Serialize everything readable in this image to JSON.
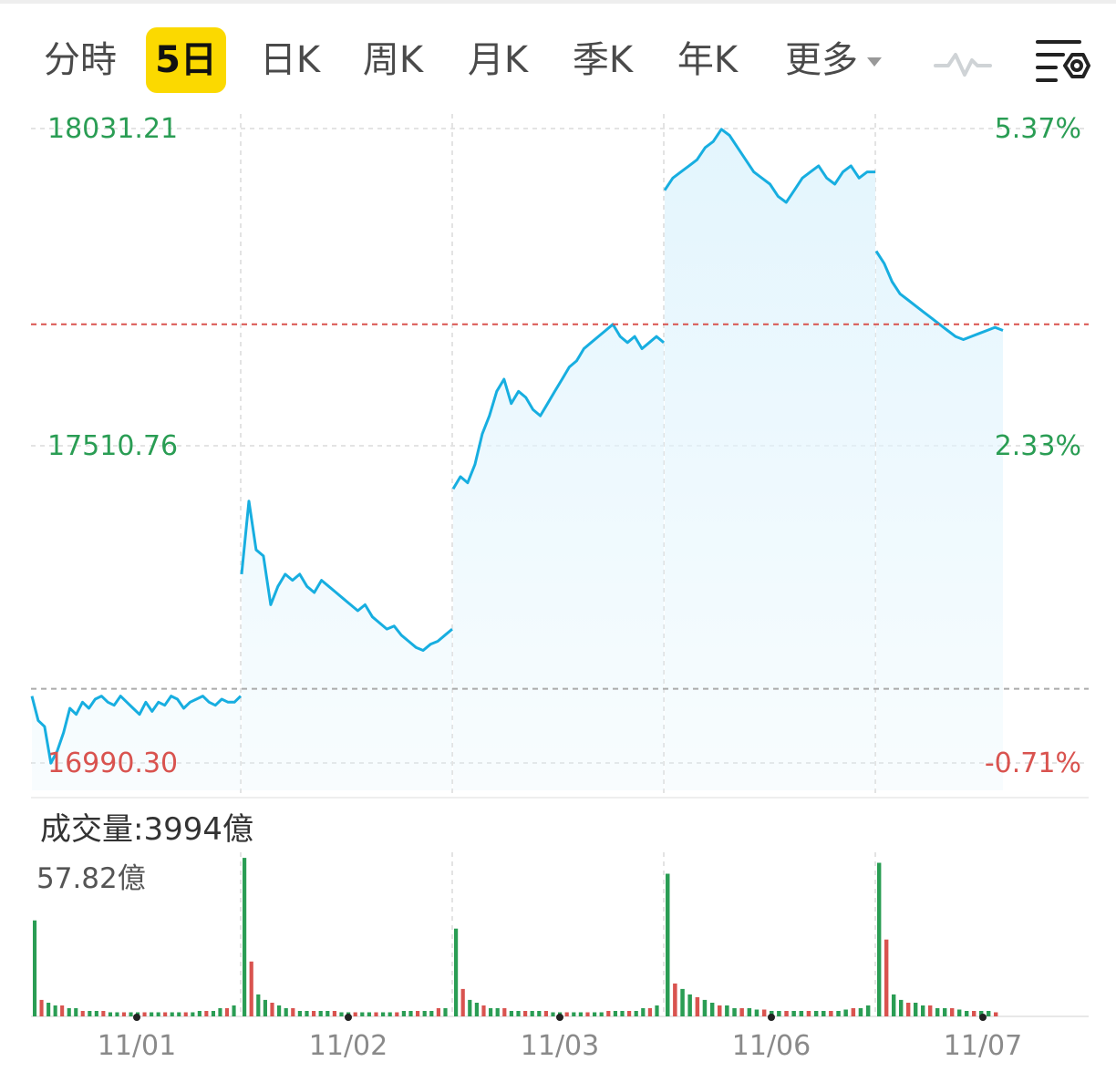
{
  "tabs": [
    {
      "label": "分時",
      "active": false
    },
    {
      "label": "5日",
      "active": true
    },
    {
      "label": "日K",
      "active": false
    },
    {
      "label": "周K",
      "active": false
    },
    {
      "label": "月K",
      "active": false
    },
    {
      "label": "季K",
      "active": false
    },
    {
      "label": "年K",
      "active": false
    },
    {
      "label": "更多",
      "active": false
    }
  ],
  "icons": {
    "indicator": "line-wave-icon",
    "settings": "chart-settings-icon"
  },
  "volume": {
    "title_label": "成交量:",
    "total": "3994億",
    "max_label": "57.82億"
  },
  "colors": {
    "line": "#17aee0",
    "fill": "#e3f5fd",
    "up": "#2a9d54",
    "down": "#d9534f",
    "tab_active": "#fbd900",
    "ref_red": "#d9534f",
    "ref_gray": "#aaaaaa"
  },
  "chart_data": [
    {
      "type": "line",
      "title": "",
      "x_labels": [
        "11/01",
        "11/02",
        "11/03",
        "11/06",
        "11/07"
      ],
      "price_axis_labels": [
        "18031.21",
        "17510.76",
        "16990.30"
      ],
      "pct_axis_labels": [
        "5.37%",
        "2.33%",
        "-0.71%"
      ],
      "ylim": [
        16990.3,
        18031.21
      ],
      "prev_close": 17112.0,
      "ref_level": 17710.0,
      "days": [
        {
          "date": "11/01",
          "values": [
            17100,
            17060,
            17050,
            16990,
            17010,
            17040,
            17080,
            17070,
            17090,
            17080,
            17095,
            17100,
            17090,
            17085,
            17100,
            17090,
            17080,
            17070,
            17090,
            17075,
            17090,
            17085,
            17100,
            17095,
            17080,
            17090,
            17095,
            17100,
            17090,
            17085,
            17095,
            17090,
            17090,
            17100
          ]
        },
        {
          "date": "11/02",
          "values": [
            17300,
            17420,
            17340,
            17330,
            17250,
            17280,
            17300,
            17290,
            17300,
            17280,
            17270,
            17290,
            17280,
            17270,
            17260,
            17250,
            17240,
            17250,
            17230,
            17220,
            17210,
            17215,
            17200,
            17190,
            17180,
            17175,
            17185,
            17190,
            17200,
            17210
          ]
        },
        {
          "date": "11/03",
          "values": [
            17440,
            17460,
            17450,
            17480,
            17530,
            17560,
            17600,
            17620,
            17580,
            17600,
            17590,
            17570,
            17560,
            17580,
            17600,
            17620,
            17640,
            17650,
            17670,
            17680,
            17690,
            17700,
            17710,
            17690,
            17680,
            17690,
            17670,
            17680,
            17690,
            17680
          ]
        },
        {
          "date": "11/06",
          "values": [
            17930,
            17950,
            17960,
            17970,
            17980,
            18000,
            18010,
            18030,
            18020,
            18000,
            17980,
            17960,
            17950,
            17940,
            17920,
            17910,
            17930,
            17950,
            17960,
            17970,
            17950,
            17940,
            17960,
            17970,
            17950,
            17960,
            17960
          ]
        },
        {
          "date": "11/07",
          "values": [
            17830,
            17810,
            17780,
            17760,
            17750,
            17740,
            17730,
            17720,
            17710,
            17700,
            17690,
            17685,
            17690,
            17695,
            17700,
            17705,
            17700
          ]
        }
      ]
    },
    {
      "type": "bar",
      "title": "成交量",
      "ylim": [
        0,
        57.82
      ],
      "y_unit": "億",
      "days": [
        {
          "date": "11/01",
          "values": [
            35,
            6,
            5,
            4,
            4,
            3,
            3,
            2,
            2,
            2,
            2,
            1.5,
            1.5,
            1.5,
            1.5,
            1.5,
            1.5,
            1.5,
            1.5,
            1.5,
            1.5,
            1.5,
            1.5,
            1.5,
            2,
            2,
            2,
            3,
            3,
            4
          ]
        },
        {
          "date": "11/02",
          "values": [
            57.8,
            20,
            8,
            6,
            5,
            4,
            3,
            3,
            2,
            2,
            2,
            2,
            2,
            2,
            1.5,
            1.5,
            1.5,
            1.5,
            1.5,
            1.5,
            1.5,
            1.5,
            1.5,
            2,
            2,
            2,
            2,
            2,
            3,
            3
          ]
        },
        {
          "date": "11/03",
          "values": [
            32,
            10,
            6,
            5,
            4,
            3,
            3,
            3,
            2,
            2,
            2,
            2,
            2,
            2,
            1.5,
            1.5,
            1.5,
            1.5,
            1.5,
            1.5,
            1.5,
            1.5,
            2,
            2,
            2,
            2,
            2,
            3,
            3,
            4
          ]
        },
        {
          "date": "11/06",
          "values": [
            52,
            12,
            10,
            8,
            7,
            6,
            5,
            4,
            4,
            3,
            3,
            3,
            2.5,
            2.5,
            2,
            2,
            2,
            2,
            2,
            2,
            2,
            2,
            2,
            2,
            2.5,
            3,
            3,
            4
          ]
        },
        {
          "date": "11/07",
          "values": [
            56,
            28,
            8,
            6,
            5,
            5,
            4,
            4,
            3,
            3,
            3,
            2.5,
            2,
            2,
            2,
            2,
            1.5
          ]
        }
      ]
    }
  ]
}
